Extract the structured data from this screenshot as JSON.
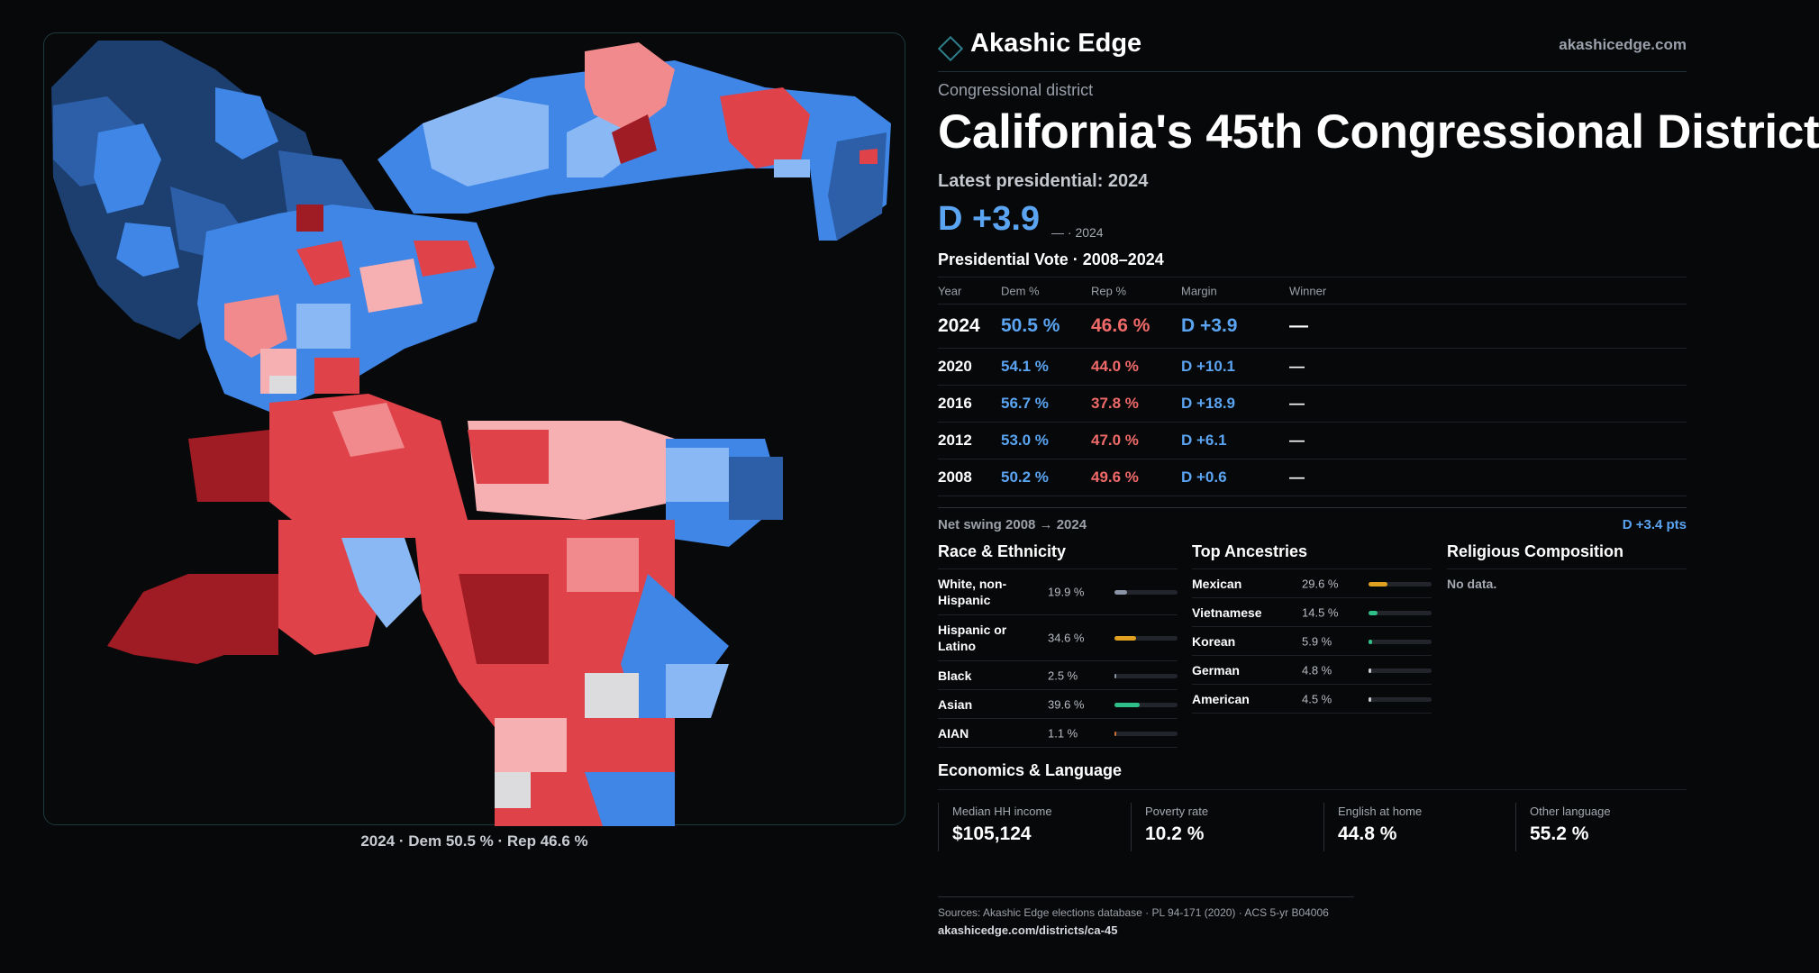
{
  "brand": {
    "name": "Akashic Edge",
    "url": "akashicedge.com"
  },
  "district": {
    "kicker": "Congressional district",
    "title": "California's 45th Congressional District"
  },
  "latest": {
    "label": "Latest presidential: 2024",
    "margin": "D +3.9",
    "note": "— · 2024"
  },
  "map": {
    "caption": "2024 · Dem 50.5 % · Rep 46.6 %"
  },
  "presidential": {
    "title": "Presidential Vote · 2008–2024",
    "headers": {
      "year": "Year",
      "dem": "Dem %",
      "rep": "Rep %",
      "margin": "Margin",
      "winner": "Winner"
    },
    "rows": [
      {
        "year": "2024",
        "dem": "50.5 %",
        "rep": "46.6 %",
        "margin": "D +3.9",
        "winner": "—"
      },
      {
        "year": "2020",
        "dem": "54.1 %",
        "rep": "44.0 %",
        "margin": "D +10.1",
        "winner": "—"
      },
      {
        "year": "2016",
        "dem": "56.7 %",
        "rep": "37.8 %",
        "margin": "D +18.9",
        "winner": "—"
      },
      {
        "year": "2012",
        "dem": "53.0 %",
        "rep": "47.0 %",
        "margin": "D +6.1",
        "winner": "—"
      },
      {
        "year": "2008",
        "dem": "50.2 %",
        "rep": "49.6 %",
        "margin": "D +0.6",
        "winner": "—"
      }
    ],
    "swing_label": "Net swing 2008 → 2024",
    "swing_value": "D +3.4 pts"
  },
  "race": {
    "title": "Race & Ethnicity",
    "rows": [
      {
        "label": "White, non-Hispanic",
        "value": "19.9 %",
        "pct": 19.9,
        "color": "#8a94a6"
      },
      {
        "label": "Hispanic or Latino",
        "value": "34.6 %",
        "pct": 34.6,
        "color": "#e0a020"
      },
      {
        "label": "Black",
        "value": "2.5 %",
        "pct": 2.5,
        "color": "#8a94a6"
      },
      {
        "label": "Asian",
        "value": "39.6 %",
        "pct": 39.6,
        "color": "#2fc08a"
      },
      {
        "label": "AIAN",
        "value": "1.1 %",
        "pct": 1.1,
        "color": "#d07030"
      }
    ]
  },
  "ancestry": {
    "title": "Top Ancestries",
    "rows": [
      {
        "label": "Mexican",
        "value": "29.6 %",
        "pct": 29.6,
        "color": "#e0a020"
      },
      {
        "label": "Vietnamese",
        "value": "14.5 %",
        "pct": 14.5,
        "color": "#2fc08a"
      },
      {
        "label": "Korean",
        "value": "5.9 %",
        "pct": 5.9,
        "color": "#2fc08a"
      },
      {
        "label": "German",
        "value": "4.8 %",
        "pct": 4.8,
        "color": "#c8ccd2"
      },
      {
        "label": "American",
        "value": "4.5 %",
        "pct": 4.5,
        "color": "#c8ccd2"
      }
    ]
  },
  "religion": {
    "title": "Religious Composition",
    "empty": "No data."
  },
  "economics": {
    "title": "Economics & Language",
    "kpis": [
      {
        "label": "Median HH income",
        "value": "$105,124"
      },
      {
        "label": "Poverty rate",
        "value": "10.2 %"
      },
      {
        "label": "English at home",
        "value": "44.8 %"
      },
      {
        "label": "Other language",
        "value": "55.2 %"
      }
    ]
  },
  "sources": {
    "line": "Sources: Akashic Edge elections database · PL 94-171 (2020) · ACS 5-yr B04006",
    "url": "akashicedge.com/districts/ca-45"
  },
  "colors": {
    "dem": "#5aa4f2",
    "rep": "#f06a6a",
    "blue_dark": "#1c3f70",
    "blue_mid": "#2c5fa8",
    "blue": "#3f86e6",
    "blue_light": "#8ab8f4",
    "red_dark": "#a01c24",
    "red": "#e0424a",
    "red_light": "#f08a8c",
    "pink": "#f6b0b2",
    "gray": "#dcdcdf"
  }
}
